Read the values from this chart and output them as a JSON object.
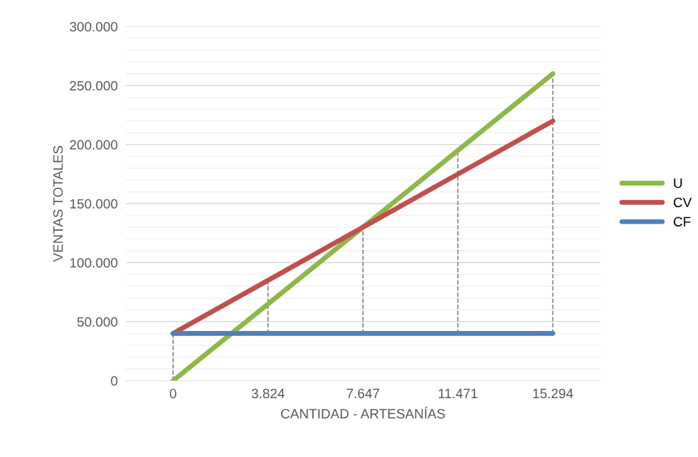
{
  "chart_data": {
    "type": "line",
    "xlabel": "CANTIDAD - ARTESANÍAS",
    "ylabel": "VENTAS TOTALES",
    "categories": [
      "0",
      "3.824",
      "7.647",
      "11.471",
      "15.294"
    ],
    "series": [
      {
        "name": "U",
        "color": "#8db84a",
        "values": [
          0,
          65000,
          130000,
          195000,
          260000
        ]
      },
      {
        "name": "CV",
        "color": "#c0504d",
        "values": [
          40000,
          85000,
          130000,
          175000,
          220000
        ]
      },
      {
        "name": "CF",
        "color": "#4f81bd",
        "values": [
          40000,
          40000,
          40000,
          40000,
          40000
        ]
      }
    ],
    "ylim": [
      0,
      300000
    ],
    "yticks": [
      0,
      {
        "value": 50000,
        "label": "50.000"
      },
      {
        "value": 100000,
        "label": "100.000"
      },
      {
        "value": 150000,
        "label": "150.000"
      },
      {
        "value": 200000,
        "label": "200.000"
      },
      {
        "value": 250000,
        "label": "250.000"
      },
      {
        "value": 300000,
        "label": "300.000"
      }
    ],
    "ref_lines": [
      {
        "axis": "x",
        "value": "0",
        "color": "#808080",
        "line_style": "dashed"
      },
      {
        "axis": "x",
        "value": "3.824",
        "color": "#808080",
        "line_style": "dashed"
      },
      {
        "axis": "x",
        "value": "7.647",
        "color": "#808080",
        "line_style": "dashed"
      },
      {
        "axis": "x",
        "value": "11.471",
        "color": "#808080",
        "line_style": "dashed"
      },
      {
        "axis": "x",
        "value": "15.294",
        "color": "#808080",
        "line_style": "dashed"
      }
    ],
    "grid": "y",
    "legend": "right",
    "marker": "none",
    "line_style": "solid"
  }
}
